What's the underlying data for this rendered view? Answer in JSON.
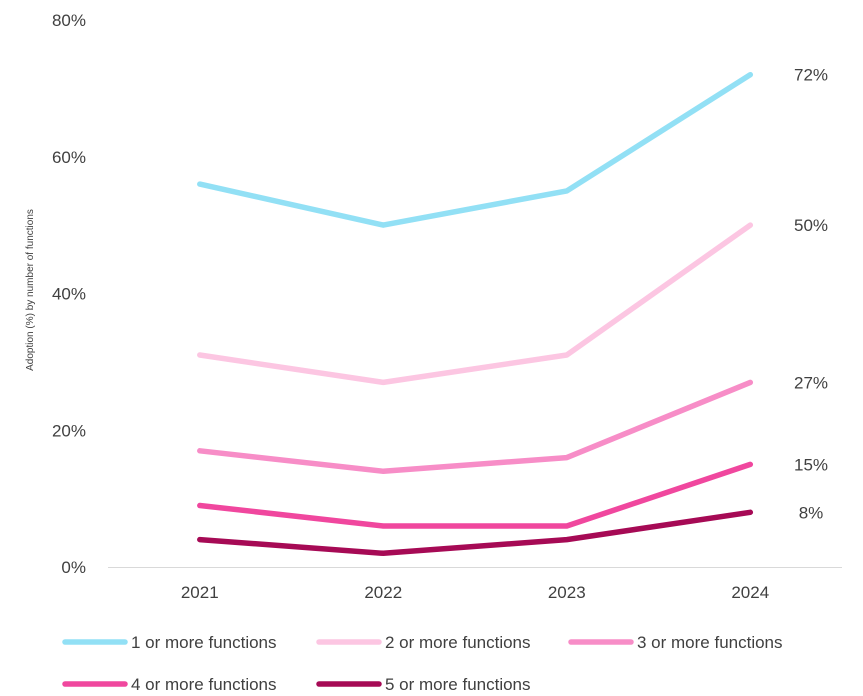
{
  "chart_data": {
    "type": "line",
    "title": "",
    "xlabel": "",
    "ylabel": "Adoption (%) by number of functions",
    "x": [
      "2021",
      "2022",
      "2023",
      "2024"
    ],
    "ylim": [
      0,
      80
    ],
    "y_ticks": [
      "0%",
      "20%",
      "40%",
      "60%",
      "80%"
    ],
    "grid": false,
    "legend_position": "bottom",
    "series": [
      {
        "name": "1 or more functions",
        "color": "#92e0f5",
        "values": [
          56,
          50,
          55,
          72
        ],
        "end_label": "72%"
      },
      {
        "name": "2 or more functions",
        "color": "#fcc6e2",
        "values": [
          31,
          27,
          31,
          50
        ],
        "end_label": "50%"
      },
      {
        "name": "3 or more functions",
        "color": "#f78dc7",
        "values": [
          17,
          14,
          16,
          27
        ],
        "end_label": "27%"
      },
      {
        "name": "4 or more functions",
        "color": "#f0479e",
        "values": [
          9,
          6,
          6,
          15
        ],
        "end_label": "15%"
      },
      {
        "name": "5 or more functions",
        "color": "#a60a55",
        "values": [
          4,
          2,
          4,
          8
        ],
        "end_label": "8%"
      }
    ]
  }
}
